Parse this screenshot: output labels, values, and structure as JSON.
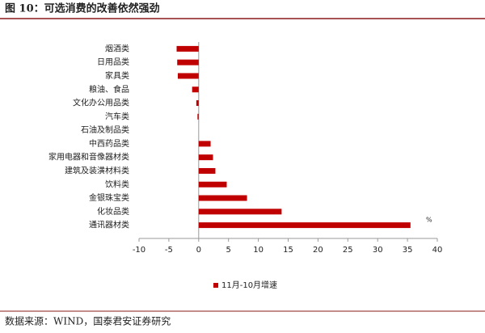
{
  "chart_data": {
    "type": "bar",
    "orientation": "horizontal",
    "title": "图 10：可选消费的改善依然强劲",
    "source": "数据来源：WIND，国泰君安证券研究",
    "unit": "%",
    "categories": [
      "烟酒类",
      "日用品类",
      "家具类",
      "粮油、食品",
      "文化办公用品类",
      "汽车类",
      "石油及制品类",
      "中西药品类",
      "家用电器和音像器材类",
      "建筑及装潢材料类",
      "饮料类",
      "金银珠宝类",
      "化妆品类",
      "通讯器材类"
    ],
    "series": [
      {
        "name": "11月-10月增速",
        "color": "#c00000",
        "values": [
          -3.7,
          -3.6,
          -3.5,
          -1.1,
          -0.4,
          -0.2,
          0,
          2.0,
          2.4,
          2.8,
          4.7,
          8.1,
          13.9,
          35.5
        ]
      }
    ],
    "xlim": [
      -10,
      40
    ],
    "xticks": [
      -10,
      -5,
      0,
      5,
      10,
      15,
      20,
      25,
      30,
      35,
      40
    ]
  }
}
